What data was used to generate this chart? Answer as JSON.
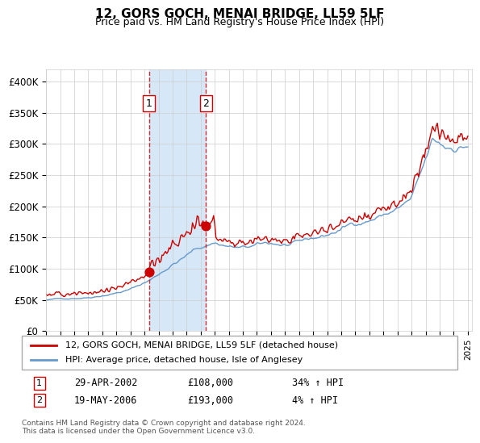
{
  "title": "12, GORS GOCH, MENAI BRIDGE, LL59 5LF",
  "subtitle": "Price paid vs. HM Land Registry's House Price Index (HPI)",
  "legend_line1": "12, GORS GOCH, MENAI BRIDGE, LL59 5LF (detached house)",
  "legend_line2": "HPI: Average price, detached house, Isle of Anglesey",
  "transaction1_date": "29-APR-2002",
  "transaction1_price": 108000,
  "transaction1_pct": "34% ↑ HPI",
  "transaction2_date": "19-MAY-2006",
  "transaction2_price": 193000,
  "transaction2_pct": "4% ↑ HPI",
  "footer": "Contains HM Land Registry data © Crown copyright and database right 2024.\nThis data is licensed under the Open Government Licence v3.0.",
  "red_color": "#cc0000",
  "blue_color": "#6699cc",
  "shaded_color": "#d6e8f7",
  "grid_color": "#cccccc",
  "background_color": "#ffffff",
  "ylim": [
    0,
    420000
  ],
  "yticks": [
    0,
    50000,
    100000,
    150000,
    200000,
    250000,
    300000,
    350000,
    400000
  ],
  "ytick_labels": [
    "£0",
    "£50K",
    "£100K",
    "£150K",
    "£200K",
    "£250K",
    "£300K",
    "£350K",
    "£400K"
  ],
  "transaction1_x": 2002.32,
  "transaction2_x": 2006.38
}
